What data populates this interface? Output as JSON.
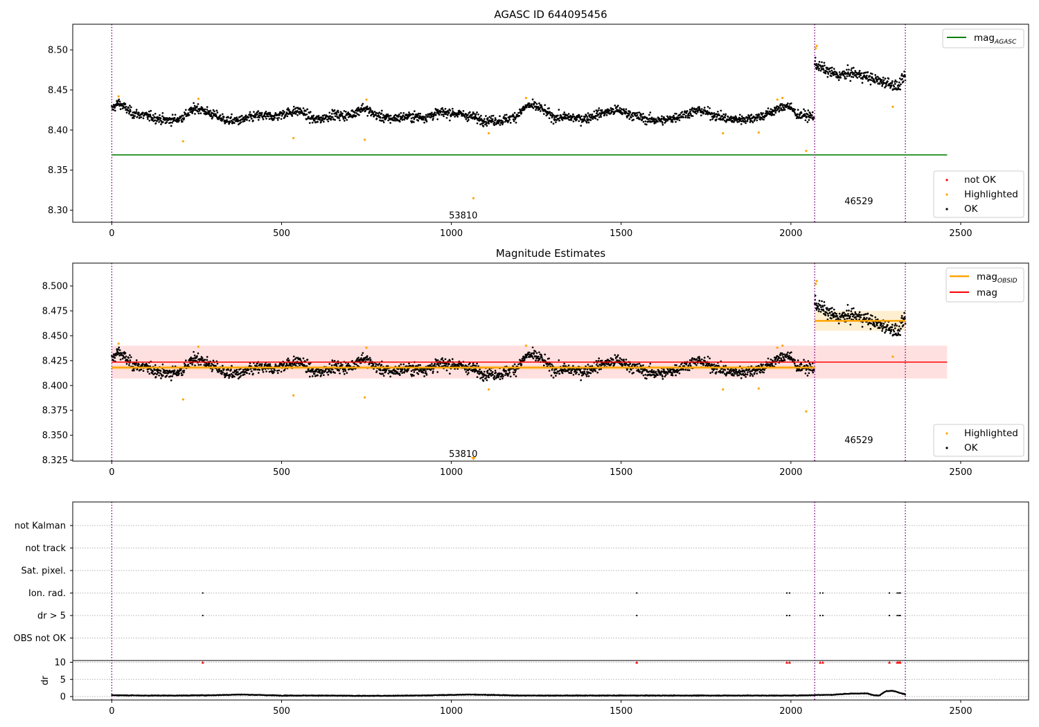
{
  "chart_data": [
    {
      "type": "scatter",
      "title": "AGASC ID 644095456",
      "xlim": [
        -115,
        2700
      ],
      "ylim": [
        8.285,
        8.532
      ],
      "xticks": [
        "0",
        "500",
        "1000",
        "1500",
        "2000",
        "2500"
      ],
      "yticks": [
        "8.30",
        "8.35",
        "8.40",
        "8.45",
        "8.50"
      ],
      "vlines_x": [
        0,
        2070,
        2337
      ],
      "obsid_labels": [
        {
          "text": "53810",
          "x": 1035,
          "y": 8.293
        },
        {
          "text": "46529",
          "x": 2200,
          "y": 8.311
        }
      ],
      "reference_line": {
        "name_base": "mag",
        "name_sub": "AGASC",
        "y": 8.369,
        "x_range": [
          0,
          2460
        ],
        "color": "#008000"
      },
      "legend_upper_right": [
        {
          "label_base": "mag",
          "label_sub": "AGASC",
          "marker": "line",
          "color": "#008000"
        }
      ],
      "legend_lower_right": [
        {
          "label": "not OK",
          "marker": "point",
          "color": "#ff0000"
        },
        {
          "label": "Highlighted",
          "marker": "point",
          "color": "#ffa500"
        },
        {
          "label": "OK",
          "marker": "point",
          "color": "#000000"
        }
      ],
      "series": [
        {
          "name": "OK",
          "color": "#000000",
          "segments": [
            {
              "x_start": 0,
              "x_end": 2068,
              "count": 2068,
              "points": [
                [
                  0,
                  8.426
                ],
                [
                  20,
                  8.434
                ],
                [
                  60,
                  8.421
                ],
                [
                  110,
                  8.417
                ],
                [
                  160,
                  8.412
                ],
                [
                  200,
                  8.414
                ],
                [
                  250,
                  8.428
                ],
                [
                  300,
                  8.419
                ],
                [
                  340,
                  8.412
                ],
                [
                  380,
                  8.412
                ],
                [
                  430,
                  8.418
                ],
                [
                  480,
                  8.417
                ],
                [
                  520,
                  8.422
                ],
                [
                  555,
                  8.424
                ],
                [
                  600,
                  8.412
                ],
                [
                  650,
                  8.419
                ],
                [
                  700,
                  8.418
                ],
                [
                  740,
                  8.428
                ],
                [
                  780,
                  8.418
                ],
                [
                  820,
                  8.414
                ],
                [
                  870,
                  8.417
                ],
                [
                  920,
                  8.416
                ],
                [
                  970,
                  8.422
                ],
                [
                  1010,
                  8.421
                ],
                [
                  1060,
                  8.417
                ],
                [
                  1100,
                  8.412
                ],
                [
                  1150,
                  8.412
                ],
                [
                  1190,
                  8.417
                ],
                [
                  1225,
                  8.431
                ],
                [
                  1260,
                  8.428
                ],
                [
                  1300,
                  8.416
                ],
                [
                  1340,
                  8.416
                ],
                [
                  1390,
                  8.414
                ],
                [
                  1440,
                  8.421
                ],
                [
                  1490,
                  8.425
                ],
                [
                  1530,
                  8.419
                ],
                [
                  1580,
                  8.413
                ],
                [
                  1630,
                  8.412
                ],
                [
                  1680,
                  8.419
                ],
                [
                  1730,
                  8.425
                ],
                [
                  1780,
                  8.418
                ],
                [
                  1820,
                  8.413
                ],
                [
                  1870,
                  8.414
                ],
                [
                  1920,
                  8.418
                ],
                [
                  1960,
                  8.426
                ],
                [
                  1990,
                  8.431
                ],
                [
                  2020,
                  8.419
                ],
                [
                  2068,
                  8.417
                ]
              ]
            },
            {
              "x_start": 2070,
              "x_end": 2337,
              "count": 267,
              "points": [
                [
                  2070,
                  8.483
                ],
                [
                  2100,
                  8.475
                ],
                [
                  2140,
                  8.468
                ],
                [
                  2180,
                  8.471
                ],
                [
                  2220,
                  8.467
                ],
                [
                  2260,
                  8.461
                ],
                [
                  2290,
                  8.459
                ],
                [
                  2315,
                  8.453
                ],
                [
                  2337,
                  8.468
                ]
              ]
            }
          ]
        },
        {
          "name": "Highlighted",
          "color": "#ffa500",
          "points": [
            [
              20,
              8.442
            ],
            [
              210,
              8.386
            ],
            [
              255,
              8.439
            ],
            [
              535,
              8.39
            ],
            [
              745,
              8.388
            ],
            [
              750,
              8.438
            ],
            [
              1065,
              8.315
            ],
            [
              1110,
              8.396
            ],
            [
              1220,
              8.44
            ],
            [
              1800,
              8.396
            ],
            [
              1905,
              8.397
            ],
            [
              1960,
              8.438
            ],
            [
              1975,
              8.44
            ],
            [
              2045,
              8.374
            ],
            [
              2073,
              8.502
            ],
            [
              2076,
              8.505
            ],
            [
              2300,
              8.429
            ]
          ]
        }
      ]
    },
    {
      "type": "scatter",
      "title": "Magnitude Estimates",
      "xlim": [
        -115,
        2700
      ],
      "ylim": [
        8.324,
        8.523
      ],
      "xticks": [
        "0",
        "500",
        "1000",
        "1500",
        "2000",
        "2500"
      ],
      "yticks": [
        "8.325",
        "8.350",
        "8.375",
        "8.400",
        "8.425",
        "8.450",
        "8.475",
        "8.500"
      ],
      "vlines_x": [
        0,
        2070,
        2337
      ],
      "obsid_labels": [
        {
          "text": "53810",
          "x": 1035,
          "y": 8.331
        },
        {
          "text": "46529",
          "x": 2200,
          "y": 8.345
        }
      ],
      "mag_line": {
        "name": "mag",
        "y": 8.4235,
        "band": [
          8.407,
          8.44
        ],
        "x_range": [
          0,
          2460
        ],
        "color": "#ff0000"
      },
      "obsid_mags": [
        {
          "name_base": "mag",
          "name_sub": "OBSID",
          "x_range": [
            0,
            2070
          ],
          "y": 8.418,
          "band": [
            8.416,
            8.42
          ]
        },
        {
          "name_base": "mag",
          "name_sub": "OBSID",
          "x_range": [
            2070,
            2337
          ],
          "y": 8.465,
          "band": [
            8.455,
            8.475
          ]
        }
      ],
      "legend_upper_right": [
        {
          "label_base": "mag",
          "label_sub": "OBSID",
          "marker": "line",
          "color": "#ffa500"
        },
        {
          "label": "mag",
          "marker": "line",
          "color": "#ff0000"
        }
      ],
      "legend_lower_right": [
        {
          "label": "Highlighted",
          "marker": "point",
          "color": "#ffa500"
        },
        {
          "label": "OK",
          "marker": "point",
          "color": "#000000"
        }
      ],
      "out_of_range_marker": {
        "x": 1065,
        "direction": "down",
        "color": "#ffa500"
      }
    },
    {
      "type": "scatter",
      "title": "",
      "xlim": [
        -115,
        2700
      ],
      "xticks": [
        "0",
        "500",
        "1000",
        "1500",
        "2000",
        "2500"
      ],
      "flag_rows": [
        "not Kalman",
        "not track",
        "Sat. pixel.",
        "Ion. rad.",
        "dr > 5",
        "OBS not OK"
      ],
      "flag_points": [
        {
          "flag": "Ion. rad.",
          "x": [
            268,
            1546,
            1988,
            1996,
            2086,
            2094,
            2290,
            2313,
            2318,
            2322
          ]
        },
        {
          "flag": "dr > 5",
          "x": [
            268,
            1546,
            1988,
            1996,
            2086,
            2094,
            2290,
            2313,
            2318,
            2322
          ]
        }
      ],
      "dr": {
        "ylabel": "dr",
        "yticks": [
          "0",
          "5",
          "10"
        ],
        "ylim": [
          -1,
          10.5
        ],
        "clip_value": 10,
        "clipped_x": [
          268,
          1546,
          1988,
          1996,
          2086,
          2094,
          2290,
          2313,
          2318,
          2322
        ],
        "points": [
          [
            0,
            0.4
          ],
          [
            100,
            0.3
          ],
          [
            200,
            0.3
          ],
          [
            300,
            0.4
          ],
          [
            380,
            0.6
          ],
          [
            500,
            0.3
          ],
          [
            600,
            0.3
          ],
          [
            750,
            0.2
          ],
          [
            900,
            0.3
          ],
          [
            1060,
            0.6
          ],
          [
            1200,
            0.3
          ],
          [
            1400,
            0.3
          ],
          [
            1600,
            0.3
          ],
          [
            1800,
            0.3
          ],
          [
            2000,
            0.3
          ],
          [
            2068,
            0.4
          ],
          [
            2080,
            0.5
          ],
          [
            2120,
            0.5
          ],
          [
            2160,
            0.8
          ],
          [
            2200,
            0.9
          ],
          [
            2225,
            0.9
          ],
          [
            2240,
            0.5
          ],
          [
            2260,
            0.3
          ],
          [
            2280,
            1.6
          ],
          [
            2300,
            1.7
          ],
          [
            2337,
            0.6
          ]
        ]
      }
    }
  ]
}
